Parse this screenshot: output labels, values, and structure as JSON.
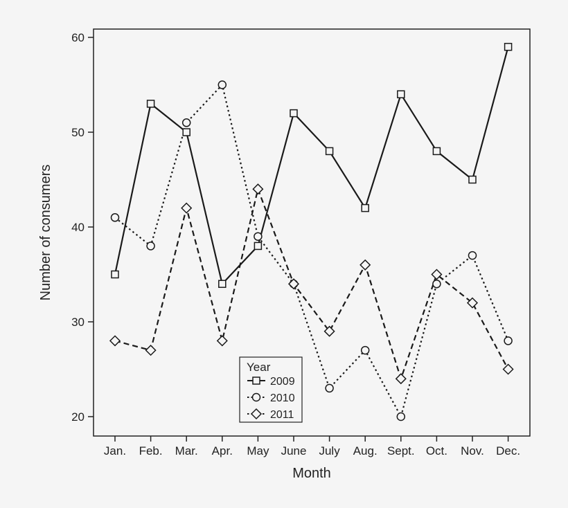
{
  "chart_data": {
    "type": "line",
    "title": "",
    "xlabel": "Month",
    "ylabel": "Number of consumers",
    "categories": [
      "Jan.",
      "Feb.",
      "Mar.",
      "Apr.",
      "May",
      "June",
      "July",
      "Aug.",
      "Sept.",
      "Oct.",
      "Nov.",
      "Dec."
    ],
    "ylim": [
      18,
      62
    ],
    "yticks": [
      20,
      30,
      40,
      50,
      60
    ],
    "grid": false,
    "legend": {
      "title": "Year",
      "placement": "bottom-center"
    },
    "series": [
      {
        "name": "2009",
        "marker": "square",
        "line": "solid",
        "values": [
          35,
          53,
          50,
          34,
          38,
          52,
          48,
          42,
          54,
          48,
          45,
          59
        ]
      },
      {
        "name": "2010",
        "marker": "circle",
        "line": "dotted",
        "values": [
          41,
          38,
          51,
          55,
          39,
          34,
          23,
          27,
          20,
          34,
          37,
          28
        ]
      },
      {
        "name": "2011",
        "marker": "diamond",
        "line": "dashed",
        "values": [
          28,
          27,
          42,
          28,
          44,
          34,
          29,
          36,
          24,
          35,
          32,
          25
        ]
      }
    ],
    "colors": {
      "line": "#1a1a1a",
      "background": "#f5f5f5"
    }
  }
}
